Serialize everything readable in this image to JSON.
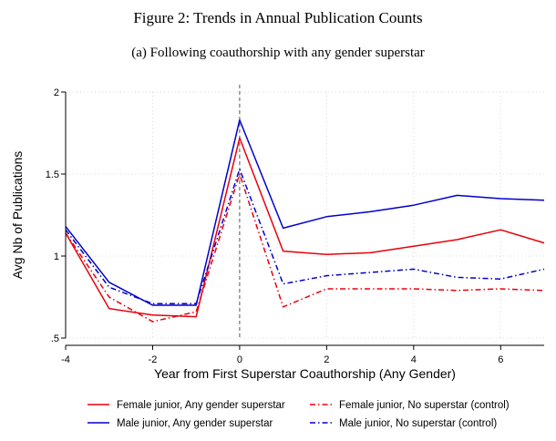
{
  "figure": {
    "title": "Figure 2:  Trends in Annual Publication Counts",
    "subtitle": "(a) Following coauthorship with any gender superstar"
  },
  "chart_data": {
    "type": "line",
    "xlabel": "Year from First Superstar Coauthorship (Any Gender)",
    "ylabel": "Avg Nb of Publications",
    "xlim": [
      -4,
      7
    ],
    "ylim": [
      0.5,
      2
    ],
    "x_ticks": [
      -4,
      -2,
      0,
      2,
      4,
      6
    ],
    "y_ticks": [
      0.5,
      1,
      1.5,
      2
    ],
    "y_tick_labels": [
      ".5",
      "1",
      "1.5",
      "2"
    ],
    "x_tick_labels": [
      "-4",
      "-2",
      "0",
      "2",
      "4",
      "6"
    ],
    "grid": true,
    "reference_line_x": 0,
    "legend_position": "bottom",
    "x": [
      -4,
      -3,
      -2,
      -1,
      0,
      1,
      2,
      3,
      4,
      5,
      6,
      7
    ],
    "series": [
      {
        "name": "Female junior, Any gender superstar",
        "color": "#e8000b",
        "style": "solid",
        "values": [
          1.14,
          0.68,
          0.64,
          0.63,
          1.72,
          1.03,
          1.01,
          1.02,
          1.06,
          1.1,
          1.16,
          1.08
        ]
      },
      {
        "name": "Male junior, Any gender superstar",
        "color": "#0000cc",
        "style": "solid",
        "values": [
          1.18,
          0.84,
          0.7,
          0.7,
          1.83,
          1.17,
          1.24,
          1.27,
          1.31,
          1.37,
          1.35,
          1.34
        ]
      },
      {
        "name": "Female junior, No superstar (control)",
        "color": "#e8000b",
        "style": "dashdot",
        "values": [
          1.14,
          0.75,
          0.6,
          0.66,
          1.5,
          0.69,
          0.8,
          0.8,
          0.8,
          0.79,
          0.8,
          0.79
        ]
      },
      {
        "name": "Male junior, No superstar (control)",
        "color": "#0000cc",
        "style": "dashdot",
        "values": [
          1.16,
          0.81,
          0.71,
          0.71,
          1.53,
          0.83,
          0.88,
          0.9,
          0.92,
          0.87,
          0.86,
          0.92
        ]
      }
    ]
  }
}
